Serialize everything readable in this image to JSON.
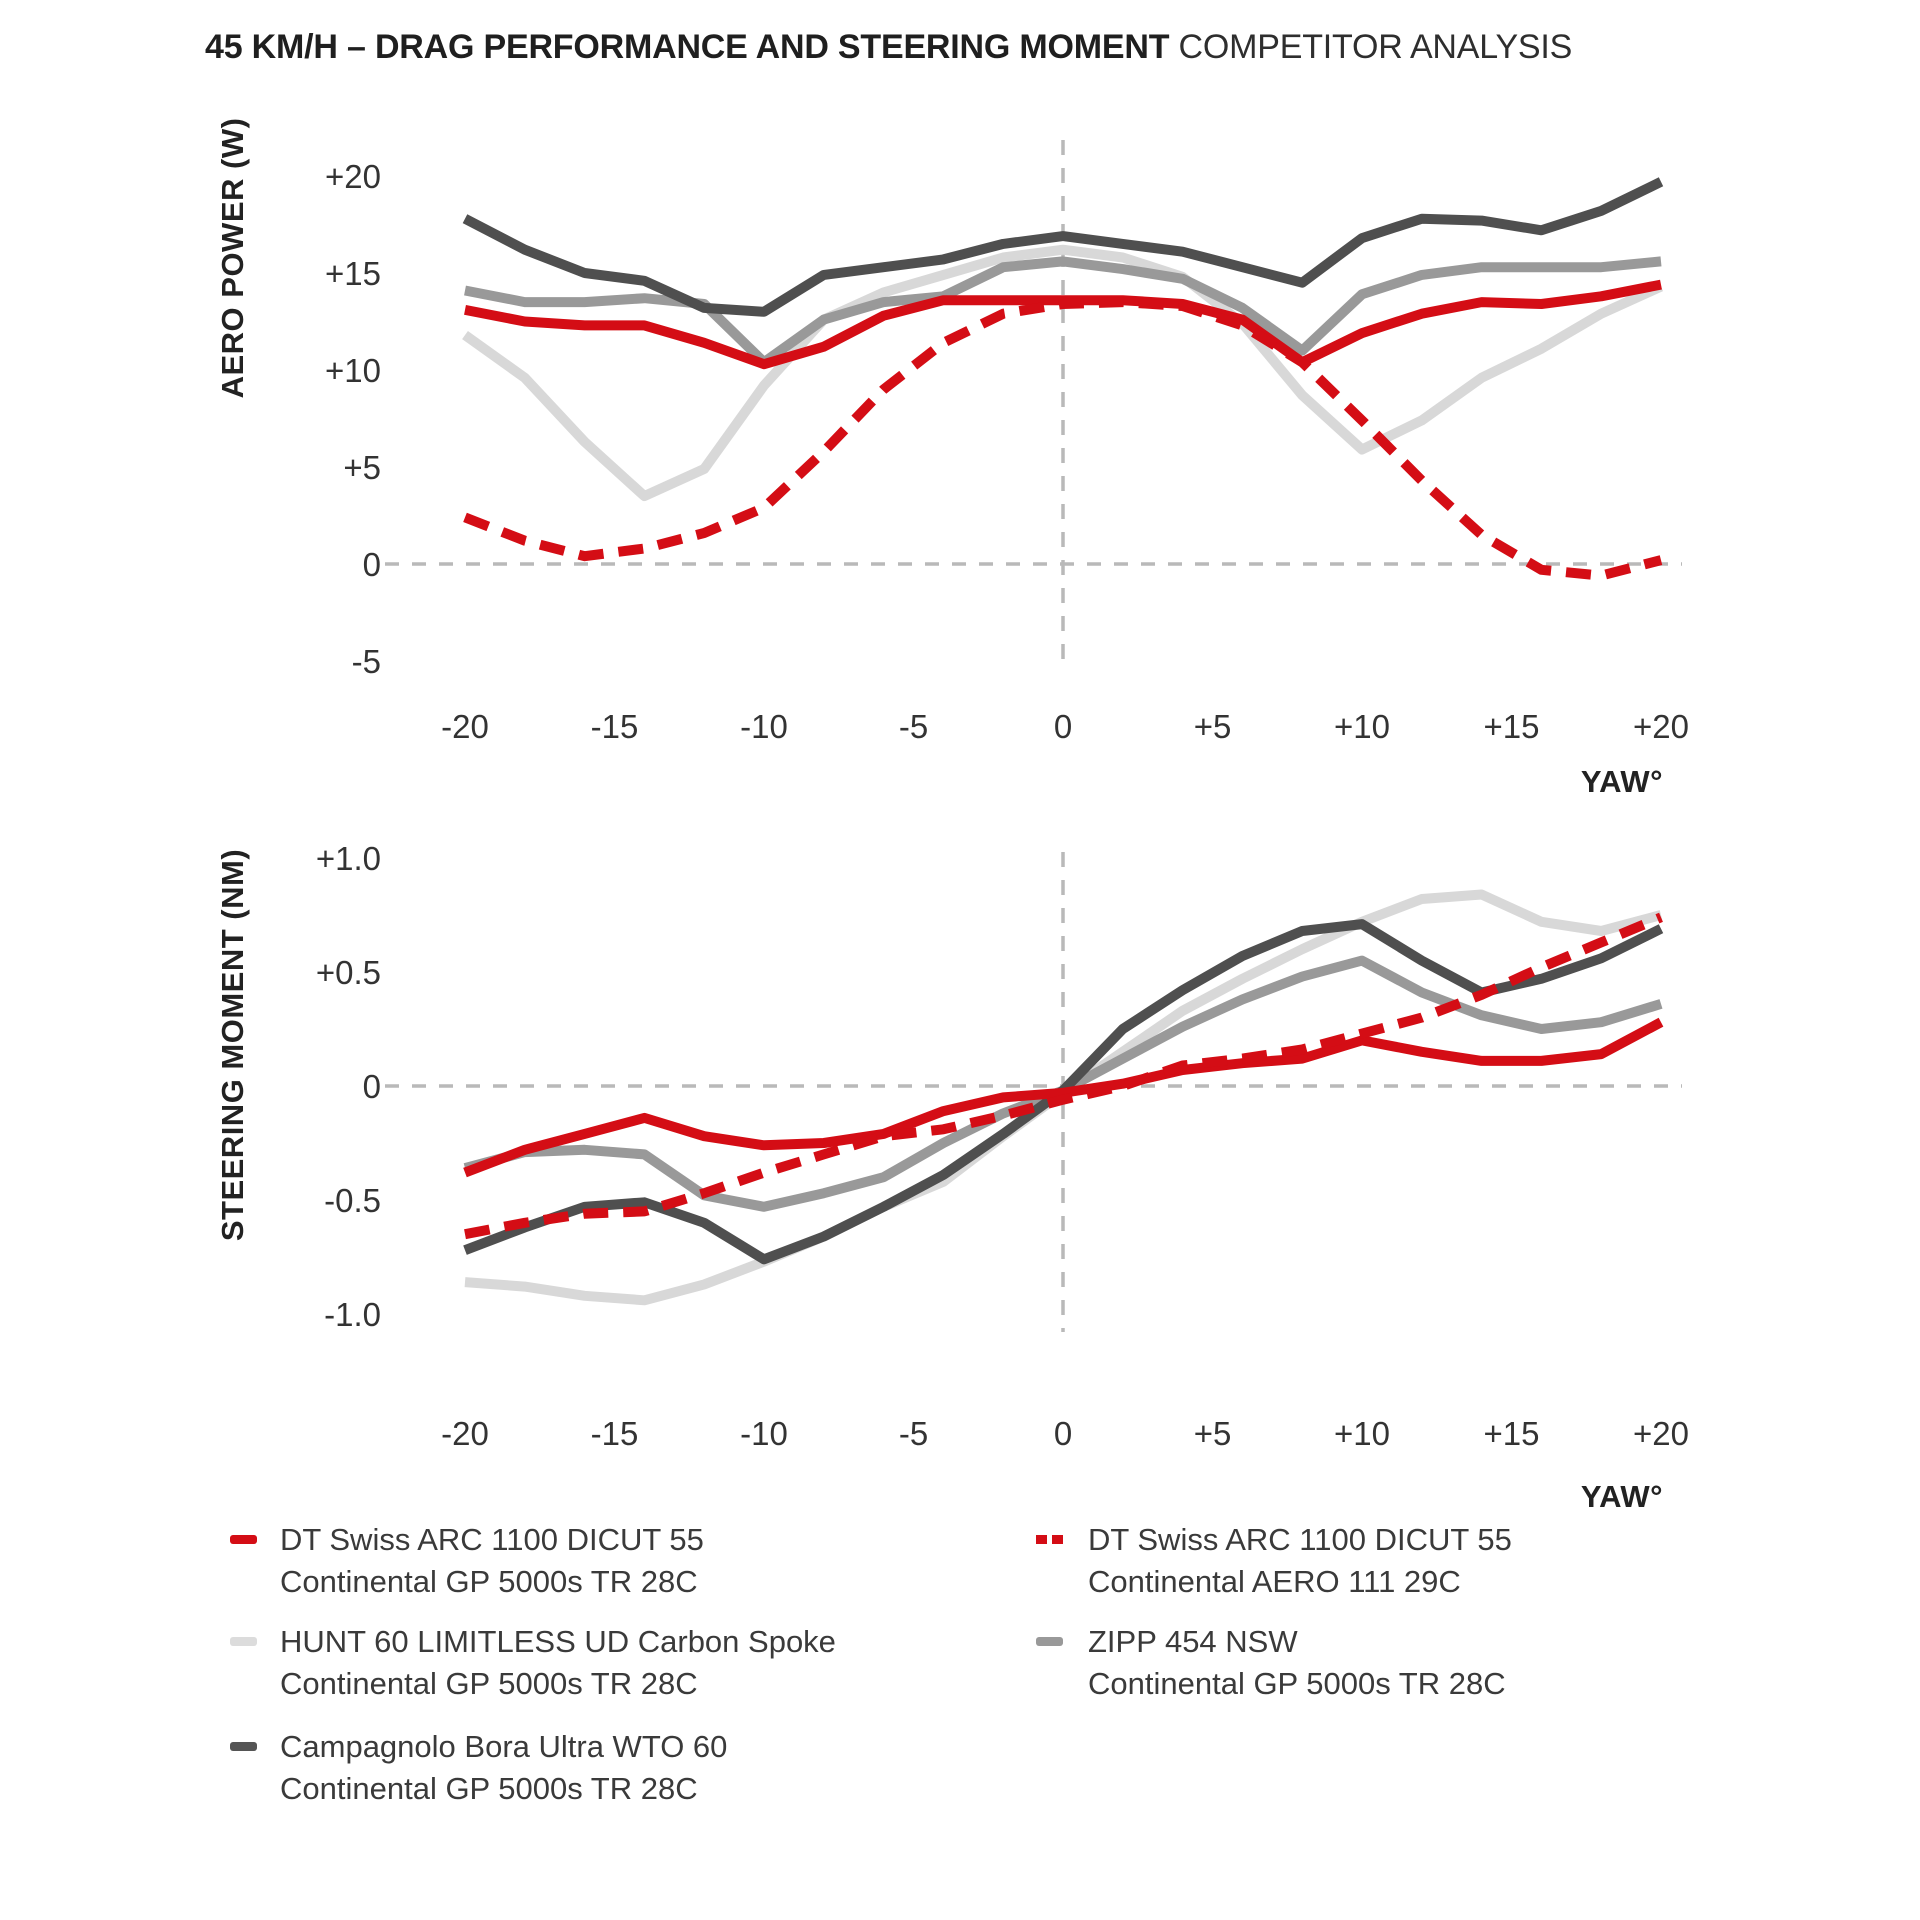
{
  "title": {
    "bold": "45 KM/H – DRAG PERFORMANCE AND STEERING MOMENT",
    "light": "COMPETITOR ANALYSIS"
  },
  "colors": {
    "red": "#d40d15",
    "dark_gray": "#4f4f4f",
    "medium_gray": "#999999",
    "light_gray": "#d8d8d8",
    "gridline": "#b9b9b9",
    "text": "#2e2e2e"
  },
  "chart_data": [
    {
      "type": "line",
      "title": "Aero power vs yaw",
      "ylabel": "AERO POWER (W)",
      "xlabel": "YAW°",
      "legend_position": "below",
      "grid": "zero-lines-dashed",
      "xlim": [
        -20,
        20
      ],
      "ylim": [
        -5,
        20
      ],
      "x_ticks": [
        -20,
        -15,
        -10,
        -5,
        0,
        5,
        10,
        15,
        20
      ],
      "x_tick_labels": [
        "-20",
        "-15",
        "-10",
        "-5",
        "0",
        "+5",
        "+10",
        "+15",
        "+20"
      ],
      "y_ticks": [
        20,
        15,
        10,
        5,
        0,
        -5
      ],
      "y_tick_labels": [
        "+20",
        "+15",
        "+10",
        "+5",
        "0",
        "-5"
      ],
      "x": [
        -20,
        -18,
        -16,
        -14,
        -12,
        -10,
        -8,
        -6,
        -4,
        -2,
        0,
        2,
        4,
        6,
        8,
        10,
        12,
        14,
        16,
        18,
        20
      ],
      "series": [
        {
          "name": "HUNT 60 LIMITLESS UD Carbon Spoke — Continental GP 5000s TR 28C",
          "color": "#d8d8d8",
          "line": "solid",
          "values": [
            11.8,
            9.6,
            6.3,
            3.5,
            4.9,
            9.2,
            12.6,
            14.0,
            14.9,
            15.8,
            16.2,
            15.8,
            14.8,
            12.4,
            8.7,
            5.9,
            7.4,
            9.6,
            11.1,
            12.9,
            14.3
          ]
        },
        {
          "name": "ZIPP 454 NSW — Continental GP 5000s TR 28C",
          "color": "#999999",
          "line": "solid",
          "values": [
            14.1,
            13.5,
            13.5,
            13.7,
            13.4,
            10.4,
            12.6,
            13.5,
            13.8,
            15.3,
            15.6,
            15.2,
            14.7,
            13.2,
            11.0,
            13.9,
            14.9,
            15.3,
            15.3,
            15.3,
            15.6
          ]
        },
        {
          "name": "Campagnolo Bora Ultra WTO 60 — Continental GP 5000s TR 28C",
          "color": "#4f4f4f",
          "line": "solid",
          "values": [
            17.8,
            16.2,
            15.0,
            14.6,
            13.2,
            13.0,
            14.9,
            15.3,
            15.7,
            16.5,
            16.9,
            16.5,
            16.1,
            15.3,
            14.5,
            16.8,
            17.8,
            17.7,
            17.2,
            18.2,
            19.7
          ]
        },
        {
          "name": "DT Swiss ARC 1100 DICUT 55 — Continental GP 5000s TR 28C",
          "color": "#d40d15",
          "line": "solid",
          "values": [
            13.1,
            12.5,
            12.3,
            12.3,
            11.4,
            10.3,
            11.2,
            12.8,
            13.6,
            13.6,
            13.6,
            13.6,
            13.4,
            12.6,
            10.4,
            11.9,
            12.9,
            13.5,
            13.4,
            13.8,
            14.4
          ]
        },
        {
          "name": "DT Swiss ARC 1100 DICUT 55 — Continental AERO 111 29C",
          "color": "#d40d15",
          "line": "dashed",
          "values": [
            2.4,
            1.2,
            0.4,
            0.8,
            1.6,
            2.9,
            5.8,
            9.0,
            11.4,
            12.9,
            13.4,
            13.5,
            13.3,
            12.3,
            10.4,
            7.4,
            4.3,
            1.5,
            -0.3,
            -0.6,
            0.2
          ]
        }
      ]
    },
    {
      "type": "line",
      "title": "Steering moment vs yaw",
      "ylabel": "STEERING MOMENT (NM)",
      "xlabel": "YAW°",
      "legend_position": "below",
      "grid": "zero-lines-dashed",
      "xlim": [
        -20,
        20
      ],
      "ylim": [
        -1.0,
        1.0
      ],
      "x_ticks": [
        -20,
        -15,
        -10,
        -5,
        0,
        5,
        10,
        15,
        20
      ],
      "x_tick_labels": [
        "-20",
        "-15",
        "-10",
        "-5",
        "0",
        "+5",
        "+10",
        "+15",
        "+20"
      ],
      "y_ticks": [
        1.0,
        0.5,
        0,
        -0.5,
        -1.0
      ],
      "y_tick_labels": [
        "+1.0",
        "+0.5",
        "0",
        "-0.5",
        "-1.0"
      ],
      "x": [
        -20,
        -18,
        -16,
        -14,
        -12,
        -10,
        -8,
        -6,
        -4,
        -2,
        0,
        2,
        4,
        6,
        8,
        10,
        12,
        14,
        16,
        18,
        20
      ],
      "series": [
        {
          "name": "HUNT 60 LIMITLESS UD Carbon Spoke — Continental GP 5000s TR 28C",
          "color": "#d8d8d8",
          "line": "solid",
          "values": [
            -0.86,
            -0.88,
            -0.92,
            -0.94,
            -0.87,
            -0.77,
            -0.66,
            -0.53,
            -0.42,
            -0.22,
            -0.03,
            0.15,
            0.33,
            0.47,
            0.6,
            0.72,
            0.82,
            0.84,
            0.72,
            0.68,
            0.75
          ]
        },
        {
          "name": "ZIPP 454 NSW — Continental GP 5000s TR 28C",
          "color": "#999999",
          "line": "solid",
          "values": [
            -0.36,
            -0.29,
            -0.28,
            -0.3,
            -0.48,
            -0.53,
            -0.47,
            -0.4,
            -0.25,
            -0.12,
            -0.02,
            0.12,
            0.26,
            0.38,
            0.48,
            0.55,
            0.41,
            0.31,
            0.25,
            0.28,
            0.36
          ]
        },
        {
          "name": "Campagnolo Bora Ultra WTO 60 — Continental GP 5000s TR 28C",
          "color": "#4f4f4f",
          "line": "solid",
          "values": [
            -0.72,
            -0.62,
            -0.53,
            -0.51,
            -0.6,
            -0.76,
            -0.66,
            -0.53,
            -0.39,
            -0.21,
            -0.02,
            0.25,
            0.42,
            0.57,
            0.68,
            0.71,
            0.55,
            0.41,
            0.47,
            0.56,
            0.69
          ]
        },
        {
          "name": "DT Swiss ARC 1100 DICUT 55 — Continental GP 5000s TR 28C",
          "color": "#d40d15",
          "line": "solid",
          "values": [
            -0.38,
            -0.28,
            -0.21,
            -0.14,
            -0.22,
            -0.26,
            -0.25,
            -0.21,
            -0.11,
            -0.05,
            -0.03,
            0.01,
            0.07,
            0.1,
            0.12,
            0.2,
            0.15,
            0.11,
            0.11,
            0.14,
            0.28
          ]
        },
        {
          "name": "DT Swiss ARC 1100 DICUT 55 — Continental AERO 111 29C",
          "color": "#d40d15",
          "line": "dashed",
          "values": [
            -0.65,
            -0.6,
            -0.56,
            -0.55,
            -0.47,
            -0.38,
            -0.3,
            -0.22,
            -0.19,
            -0.13,
            -0.06,
            0.0,
            0.09,
            0.12,
            0.16,
            0.23,
            0.3,
            0.4,
            0.52,
            0.63,
            0.74
          ]
        }
      ]
    }
  ],
  "legend": {
    "items": [
      {
        "swatch": "red-solid",
        "line1": "DT Swiss ARC 1100 DICUT 55",
        "line2": "Continental GP 5000s TR 28C"
      },
      {
        "swatch": "light-solid",
        "line1": "HUNT 60 LIMITLESS UD Carbon Spoke",
        "line2": "Continental GP 5000s TR 28C"
      },
      {
        "swatch": "dark-solid",
        "line1": "Campagnolo Bora Ultra WTO 60",
        "line2": "Continental GP 5000s TR 28C"
      },
      {
        "swatch": "red-dashed",
        "line1": "DT Swiss ARC 1100 DICUT 55",
        "line2": "Continental AERO 111 29C"
      },
      {
        "swatch": "gray-solid",
        "line1": "ZIPP 454 NSW",
        "line2": "Continental GP 5000s TR 28C"
      }
    ]
  }
}
